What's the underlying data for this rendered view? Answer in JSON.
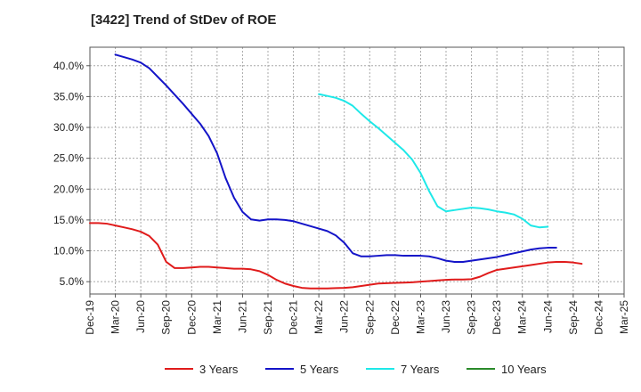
{
  "chart_data": {
    "type": "line",
    "title": "[3422]  Trend of StDev of ROE",
    "xlabel": "",
    "ylabel": "",
    "x_tick_labels": [
      "Dec-19",
      "Mar-20",
      "Jun-20",
      "Sep-20",
      "Dec-20",
      "Mar-21",
      "Jun-21",
      "Sep-21",
      "Dec-21",
      "Mar-22",
      "Jun-22",
      "Sep-22",
      "Dec-22",
      "Mar-23",
      "Jun-23",
      "Sep-23",
      "Dec-23",
      "Mar-24",
      "Jun-24",
      "Sep-24",
      "Dec-24",
      "Mar-25"
    ],
    "y_tick_labels": [
      "5.0%",
      "10.0%",
      "15.0%",
      "20.0%",
      "25.0%",
      "30.0%",
      "35.0%",
      "40.0%"
    ],
    "y_ticks": [
      5,
      10,
      15,
      20,
      25,
      30,
      35,
      40
    ],
    "ylim": [
      3,
      43
    ],
    "grid": true,
    "legend_position": "bottom",
    "series": [
      {
        "name": "3 Years",
        "color": "#e01b1b",
        "start_index": 0,
        "values": [
          14.5,
          14.5,
          14.4,
          14.1,
          13.8,
          13.5,
          13.1,
          12.4,
          11.0,
          8.2,
          7.2,
          7.2,
          7.3,
          7.4,
          7.4,
          7.3,
          7.2,
          7.1,
          7.1,
          7.0,
          6.7,
          6.1,
          5.3,
          4.7,
          4.3,
          4.0,
          3.9,
          3.9,
          3.9,
          3.95,
          4.0,
          4.1,
          4.3,
          4.5,
          4.7,
          4.75,
          4.8,
          4.85,
          4.9,
          5.0,
          5.1,
          5.2,
          5.3,
          5.35,
          5.35,
          5.4,
          5.8,
          6.4,
          6.9,
          7.1,
          7.3,
          7.5,
          7.7,
          7.9,
          8.1,
          8.2,
          8.2,
          8.1,
          7.9
        ]
      },
      {
        "name": "5 Years",
        "color": "#1414c8",
        "start_index": 3,
        "values": [
          41.8,
          41.4,
          41.0,
          40.5,
          39.6,
          38.2,
          36.8,
          35.3,
          33.8,
          32.2,
          30.6,
          28.6,
          25.8,
          21.8,
          18.6,
          16.3,
          15.1,
          14.9,
          15.1,
          15.1,
          15.0,
          14.8,
          14.4,
          14.0,
          13.6,
          13.2,
          12.5,
          11.3,
          9.6,
          9.1,
          9.1,
          9.2,
          9.3,
          9.3,
          9.2,
          9.2,
          9.2,
          9.1,
          8.8,
          8.4,
          8.2,
          8.2,
          8.4,
          8.6,
          8.8,
          9.0,
          9.3,
          9.6,
          9.9,
          10.2,
          10.4,
          10.5,
          10.5
        ]
      },
      {
        "name": "7 Years",
        "color": "#1ee8e8",
        "start_index": 27,
        "values": [
          35.4,
          35.1,
          34.8,
          34.3,
          33.5,
          32.2,
          31.0,
          29.9,
          28.7,
          27.5,
          26.3,
          24.8,
          22.6,
          19.7,
          17.2,
          16.4,
          16.6,
          16.8,
          17.0,
          16.9,
          16.7,
          16.4,
          16.2,
          15.9,
          15.2,
          14.1,
          13.8,
          13.9
        ]
      },
      {
        "name": "10 Years",
        "color": "#2a8a2a",
        "start_index": 0,
        "values": []
      }
    ]
  }
}
